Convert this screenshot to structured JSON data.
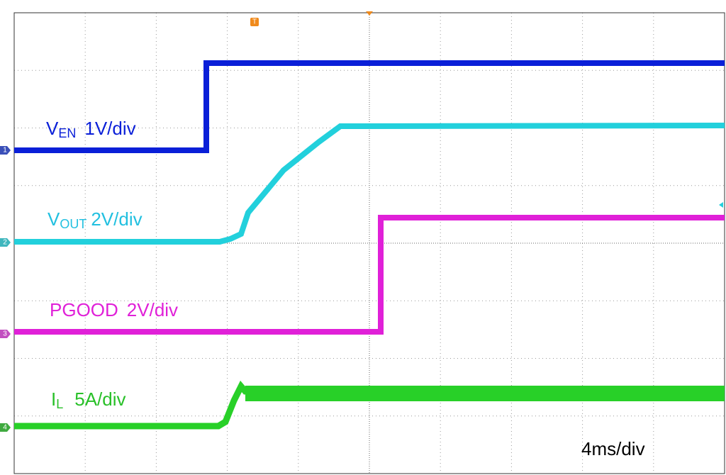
{
  "channels": [
    {
      "marker": "1",
      "name": "V",
      "sub": "EN",
      "scale": "1V/div"
    },
    {
      "marker": "2",
      "name": "V",
      "sub": "OUT",
      "scale": "2V/div"
    },
    {
      "marker": "3",
      "name": "PGOOD",
      "scale": "2V/div"
    },
    {
      "marker": "4",
      "name": "I",
      "sub": "L",
      "scale": "5A/div"
    }
  ],
  "trigger": "T",
  "timebase": "4ms/div"
}
